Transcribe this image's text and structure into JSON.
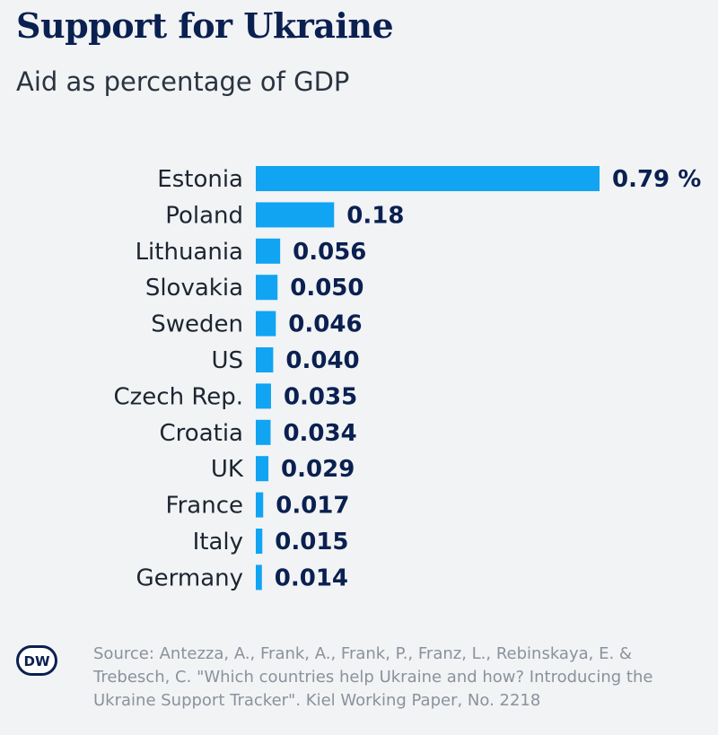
{
  "header": {
    "title": "Support for Ukraine",
    "subtitle": "Aid as percentage of GDP"
  },
  "footer": {
    "logo_text": "DW",
    "source": "Source: Antezza, A., Frank, A., Frank, P., Franz, L., Rebinskaya, E. & Trebesch, C. \"Which countries help Ukraine and how? Introducing the Ukraine Support Tracker\". Kiel Working Paper, No. 2218"
  },
  "colors": {
    "bar": "#10a4f2",
    "title": "#0a2050",
    "background": "#f1f3f5"
  },
  "chart_data": {
    "type": "bar",
    "orientation": "horizontal",
    "categories": [
      "Estonia",
      "Poland",
      "Lithuania",
      "Slovakia",
      "Sweden",
      "US",
      "Czech Rep.",
      "Croatia",
      "UK",
      "France",
      "Italy",
      "Germany"
    ],
    "values": [
      0.79,
      0.18,
      0.056,
      0.05,
      0.046,
      0.04,
      0.035,
      0.034,
      0.029,
      0.017,
      0.015,
      0.014
    ],
    "value_labels": [
      "0.79 %",
      "0.18",
      "0.056",
      "0.050",
      "0.046",
      "0.040",
      "0.035",
      "0.034",
      "0.029",
      "0.017",
      "0.015",
      "0.014"
    ],
    "unit": "%",
    "title": "Support for Ukraine",
    "subtitle": "Aid as percentage of GDP",
    "xlabel": "",
    "ylabel": "",
    "xlim": [
      0,
      0.79
    ],
    "grid": false,
    "legend": "none"
  }
}
